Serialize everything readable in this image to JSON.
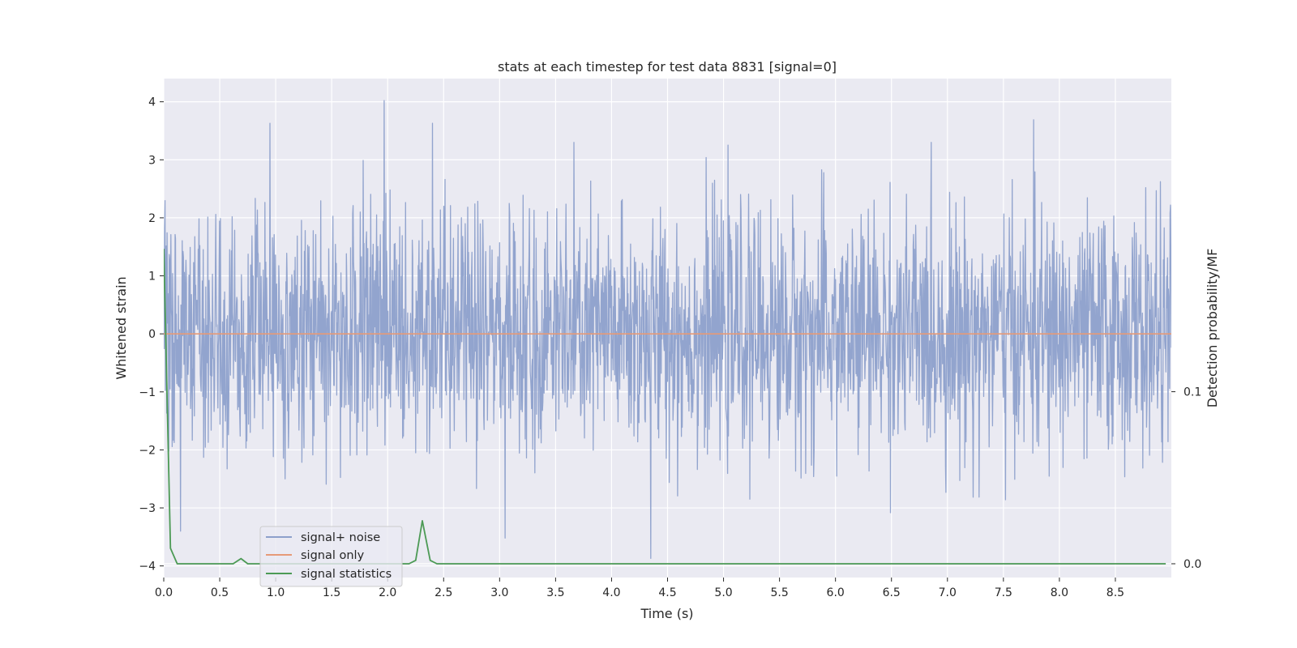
{
  "chart_data": {
    "type": "line",
    "title": "stats at each timestep for test data 8831 [signal=0]",
    "xlabel": "Time (s)",
    "ylabel": "Whitened strain",
    "y2label": "Detection probability/MF",
    "xlim": [
      0.0,
      9.0
    ],
    "ylim": [
      -4.2,
      4.4
    ],
    "y2lim": [
      -0.008,
      0.282
    ],
    "x_ticks": [
      "0.0",
      "0.5",
      "1.0",
      "1.5",
      "2.0",
      "2.5",
      "3.0",
      "3.5",
      "4.0",
      "4.5",
      "5.0",
      "5.5",
      "6.0",
      "6.5",
      "7.0",
      "7.5",
      "8.0",
      "8.5"
    ],
    "y_ticks": [
      "−4",
      "−3",
      "−2",
      "−1",
      "0",
      "1",
      "2",
      "3",
      "4"
    ],
    "y2_ticks": [
      "0.0",
      "0.1"
    ],
    "grid": true,
    "legend_position": "lower-left",
    "series": [
      {
        "name": "signal+ noise",
        "axis": "left",
        "color": "#8da0cb",
        "description": "whitened noise fluctuating roughly between -3.9 and 4.0 across 0 to 9 s",
        "peaks": [
          {
            "x": 1.97,
            "y": 4.02
          },
          {
            "x": 0.95,
            "y": 3.63
          },
          {
            "x": 2.4,
            "y": 3.63
          },
          {
            "x": 7.77,
            "y": 3.69
          },
          {
            "x": 4.35,
            "y": -3.87
          },
          {
            "x": 3.05,
            "y": -3.52
          },
          {
            "x": 0.15,
            "y": -3.4
          }
        ]
      },
      {
        "name": "signal only",
        "axis": "left",
        "color": "#e69a78",
        "x": [
          0.0,
          9.0
        ],
        "y": [
          0.0,
          0.0
        ]
      },
      {
        "name": "signal statistics",
        "axis": "right",
        "color": "#4c9a55",
        "x": [
          0.0,
          0.06,
          0.12,
          0.25,
          0.38,
          0.5,
          0.62,
          0.69,
          0.75,
          0.88,
          1.0,
          1.12,
          1.25,
          1.38,
          1.5,
          1.62,
          1.75,
          1.88,
          2.0,
          2.12,
          2.19,
          2.25,
          2.31,
          2.38,
          2.44,
          2.5,
          3.0,
          4.0,
          5.0,
          6.0,
          7.0,
          8.0,
          8.95
        ],
        "y": [
          0.183,
          0.009,
          0.0,
          0.0,
          0.0,
          0.0,
          0.0,
          0.003,
          0.0,
          0.0,
          0.0,
          0.0,
          0.0,
          0.0,
          0.0,
          0.0,
          0.0,
          0.0,
          0.0,
          0.0,
          0.0,
          0.002,
          0.025,
          0.002,
          0.0,
          0.0,
          0.0,
          0.0,
          0.0,
          0.0,
          0.0,
          0.0,
          0.0
        ]
      }
    ]
  }
}
